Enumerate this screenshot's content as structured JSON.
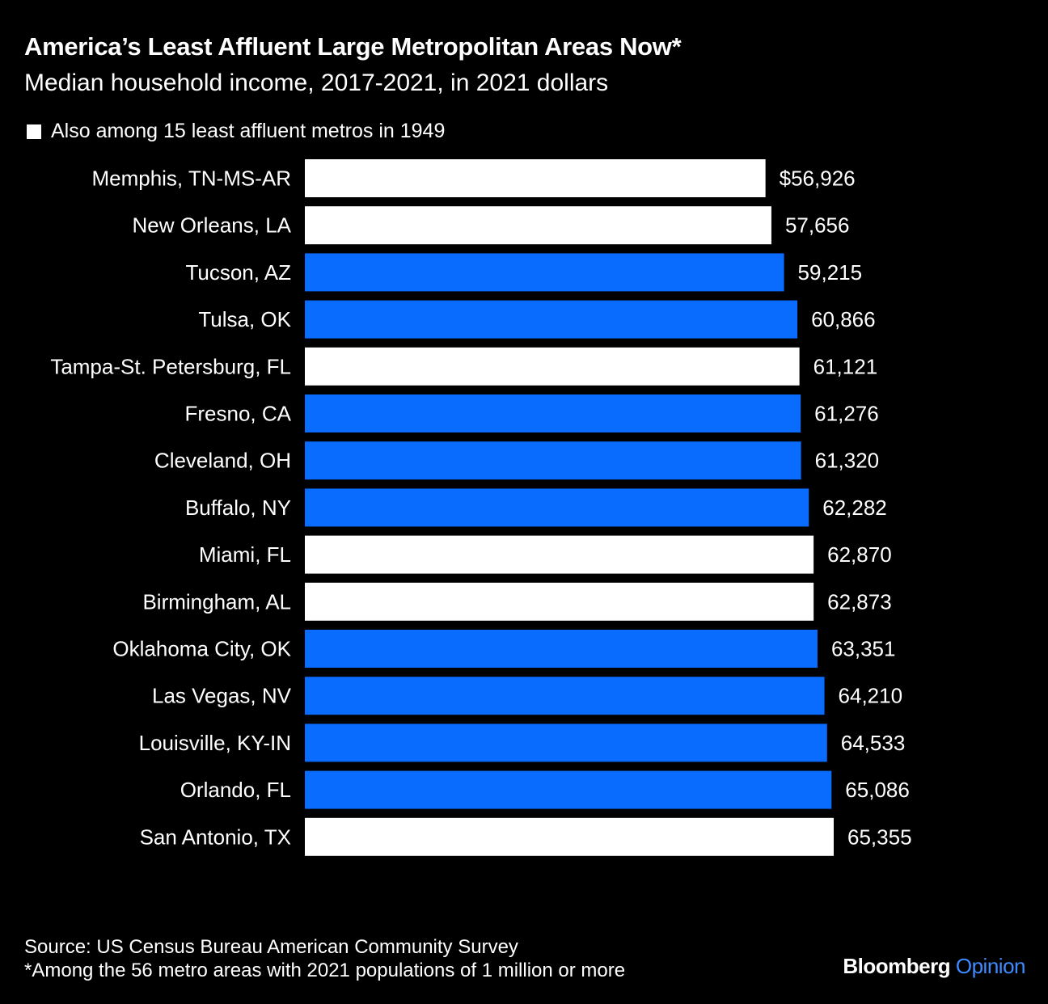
{
  "chart_data": {
    "type": "bar",
    "orientation": "horizontal",
    "title": "America’s Least Affluent Large Metropolitan Areas Now*",
    "subtitle": "Median household income, 2017-2021, in 2021 dollars",
    "legend": {
      "label": "Also among 15 least affluent metros in 1949",
      "color": "#ffffff",
      "placement": "top-left"
    },
    "categories": [
      "Memphis, TN-MS-AR",
      "New Orleans, LA",
      "Tucson, AZ",
      "Tulsa, OK",
      "Tampa-St. Petersburg, FL",
      "Fresno, CA",
      "Cleveland, OH",
      "Buffalo, NY",
      "Miami, FL",
      "Birmingham, AL",
      "Oklahoma City, OK",
      "Las Vegas, NV",
      "Louisville, KY-IN",
      "Orlando, FL",
      "San Antonio, TX"
    ],
    "values": [
      56926,
      57656,
      59215,
      60866,
      61121,
      61276,
      61320,
      62282,
      62870,
      62873,
      63351,
      64210,
      64533,
      65086,
      65355
    ],
    "value_labels": [
      "$56,926",
      "57,656",
      "59,215",
      "60,866",
      "61,121",
      "61,276",
      "61,320",
      "62,282",
      "62,870",
      "62,873",
      "63,351",
      "64,210",
      "64,533",
      "65,086",
      "65,355"
    ],
    "also_in_1949": [
      true,
      true,
      false,
      false,
      true,
      false,
      false,
      false,
      true,
      true,
      false,
      false,
      false,
      false,
      true
    ],
    "xlim": [
      0,
      65355
    ],
    "grid": false,
    "colors": {
      "highlight": "#ffffff",
      "default": "#0a6cff",
      "background": "#000000"
    }
  },
  "footer": {
    "source": "Source: US Census Bureau American Community Survey",
    "note": "*Among the 56 metro areas with 2021 populations of 1 million or more"
  },
  "brand": {
    "name": "Bloomberg",
    "section": "Opinion"
  }
}
